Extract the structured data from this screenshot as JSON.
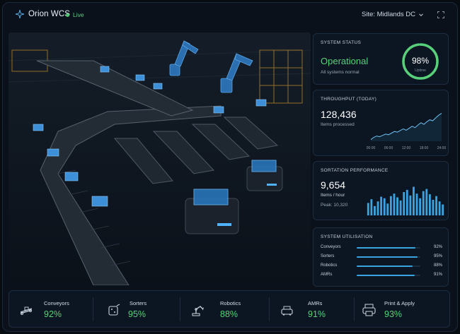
{
  "header": {
    "app_name": "Orion WCS",
    "live_label": "Live",
    "site_label": "Site: Midlands DC"
  },
  "status": {
    "title": "SYSTEM STATUS",
    "value": "Operational",
    "subtitle": "All systems normal",
    "uptime_pct": "98%",
    "uptime_fraction": 0.98,
    "uptime_label": "Uptime"
  },
  "throughput": {
    "title": "THROUGHPUT (TODAY)",
    "value": "128,436",
    "subtitle": "Items processed",
    "chart_data": {
      "type": "line",
      "categories": [
        "00:00",
        "06:00",
        "12:00",
        "18:00",
        "24:00"
      ],
      "x": [
        0,
        1,
        2,
        3,
        4,
        5,
        6,
        7,
        8,
        9,
        10,
        11,
        12,
        13,
        14,
        15,
        16,
        17,
        18,
        19,
        20,
        21,
        22,
        23,
        24
      ],
      "values": [
        5,
        12,
        16,
        14,
        18,
        22,
        20,
        25,
        30,
        28,
        33,
        38,
        34,
        40,
        46,
        42,
        50,
        57,
        52,
        60,
        66,
        63,
        72,
        80,
        86
      ],
      "ylim": [
        0,
        100
      ]
    }
  },
  "sortation": {
    "title": "SORTATION PERFORMANCE",
    "value": "9,654",
    "unit": "Items / hour",
    "peak": "Peak: 10,320",
    "chart_data": {
      "type": "bar",
      "values": [
        40,
        52,
        30,
        45,
        60,
        55,
        38,
        62,
        70,
        58,
        48,
        75,
        82,
        64,
        92,
        70,
        55,
        78,
        85,
        68,
        50,
        62,
        45,
        35
      ],
      "ylim": [
        0,
        100
      ]
    }
  },
  "utilisation": {
    "title": "SYSTEM UTILISATION",
    "rows": [
      {
        "label": "Conveyors",
        "value": "92%",
        "fraction": 0.92
      },
      {
        "label": "Sorters",
        "value": "95%",
        "fraction": 0.95
      },
      {
        "label": "Robotics",
        "value": "88%",
        "fraction": 0.88
      },
      {
        "label": "AMRs",
        "value": "91%",
        "fraction": 0.91
      }
    ]
  },
  "kpis": [
    {
      "label": "Conveyors",
      "value": "92%",
      "icon": "conveyor-icon"
    },
    {
      "label": "Sorters",
      "value": "95%",
      "icon": "sorter-icon"
    },
    {
      "label": "Robotics",
      "value": "88%",
      "icon": "robot-arm-icon"
    },
    {
      "label": "AMRs",
      "value": "91%",
      "icon": "amr-icon"
    },
    {
      "label": "Print & Apply",
      "value": "93%",
      "icon": "printer-icon"
    }
  ],
  "colors": {
    "accent_green": "#58d07a",
    "accent_blue": "#3aa3e0",
    "background": "#070b12",
    "card": "#0c1622"
  }
}
